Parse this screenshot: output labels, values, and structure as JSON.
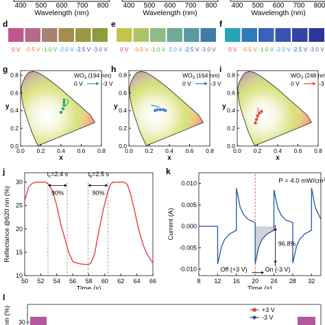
{
  "top_strip": {
    "panels": [
      {
        "ticks": [
          "400",
          "500",
          "600",
          "700",
          "800"
        ],
        "xlabel": "Wavelength (nm)"
      },
      {
        "ticks": [
          "400",
          "500",
          "600",
          "700",
          "800"
        ],
        "xlabel": "Wavelength (nm)"
      },
      {
        "ticks": [
          "400",
          "500",
          "600",
          "700",
          "800"
        ],
        "xlabel": "Wavelength (nm)"
      }
    ]
  },
  "swatch_rows": [
    {
      "letter": "d",
      "labels": [
        "0 V",
        "-0.5 V",
        "-1.0 V",
        "-2.0 V",
        "-2.5 V",
        "-3.0 V"
      ],
      "colors": [
        "#c0568d",
        "#b56a86",
        "#a98172",
        "#a08d4f",
        "#9b9842",
        "#8f9a3b"
      ],
      "label_colors": [
        "#e0404d",
        "#f07c2a",
        "#4aa845",
        "#3a9fd6",
        "#2d4fb0",
        "#7b4ea6"
      ]
    },
    {
      "letter": "e",
      "labels": [
        "0 V",
        "-0.5 V",
        "-1.0 V",
        "-2.0 V",
        "-2.5 V",
        "-3.0 V"
      ],
      "colors": [
        "#c3c34e",
        "#aec26a",
        "#8fba86",
        "#71aa96",
        "#5a99a2",
        "#3f7ca8"
      ],
      "label_colors": [
        "#e0404d",
        "#f07c2a",
        "#4aa845",
        "#3a9fd6",
        "#2d4fb0",
        "#7b4ea6"
      ]
    },
    {
      "letter": "f",
      "labels": [
        "0 V",
        "-0.5 V",
        "-1.0 V",
        "-2.0 V",
        "-2.5 V",
        "-3.0 V"
      ],
      "colors": [
        "#28a3b8",
        "#2f7bba",
        "#3862b9",
        "#3a53b2",
        "#3543a6",
        "#2d349a"
      ],
      "label_colors": [
        "#e0404d",
        "#f07c2a",
        "#4aa845",
        "#3a9fd6",
        "#2d4fb0",
        "#7b4ea6"
      ]
    }
  ],
  "cie_panels": [
    {
      "letter": "g",
      "film": "WO",
      "sub": "3",
      "thickness": " (194 nm)",
      "from": "0 V",
      "to": "-3 V",
      "arrow_color": "#2ea85a",
      "ticks_x": [
        "0.0",
        "0.2",
        "0.4",
        "0.6",
        "0.8"
      ],
      "ticks_y": [
        "0.0",
        "0.2",
        "0.4",
        "0.6",
        "0.8"
      ],
      "xlabel": "x",
      "ylabel": "y"
    },
    {
      "letter": "h",
      "film": "WO",
      "sub": "3",
      "thickness": " (164 nm)",
      "from": "0 V",
      "to": "-3 V",
      "arrow_color": "#2f7fc1",
      "ticks_x": [
        "0.0",
        "0.2",
        "0.4",
        "0.6",
        "0.8"
      ],
      "ticks_y": [
        "0.0",
        "0.2",
        "0.4",
        "0.6",
        "0.8"
      ],
      "xlabel": "x",
      "ylabel": "y"
    },
    {
      "letter": "i",
      "film": "WO",
      "sub": "3",
      "thickness": " (248 nm)",
      "from": "0 V",
      "to": "-3 V",
      "arrow_color": "#e04a3a",
      "ticks_x": [
        "0.0",
        "0.2",
        "0.4",
        "0.6",
        "0.8"
      ],
      "ticks_y": [
        "0.0",
        "0.2",
        "0.4",
        "0.6",
        "0.8"
      ],
      "xlabel": "x",
      "ylabel": "y"
    }
  ],
  "panel_j": {
    "letter": "j",
    "tc_text": "t",
    "tc_sub": "c",
    "tc_val": "=2.4 s",
    "tb_text": "t",
    "tb_sub": "b",
    "tb_val": "=2.5 s",
    "pct1": "90%",
    "pct2": "90%"
  },
  "panel_k": {
    "letter": "k",
    "power": "P = 4.0 mW/cm",
    "power_sup": "2",
    "pct": "96.8%",
    "off_label": "Off (+3 V)",
    "on_label": "On (-3 V)"
  },
  "panel_l": {
    "letter": "l",
    "ylabel_frag": "nm (%)",
    "tick": "30",
    "legend": [
      {
        "label": "+3 V",
        "color": "#e03c3c"
      },
      {
        "label": "-3 V",
        "color": "#2b4fa8"
      }
    ]
  },
  "chart_data": [
    {
      "type": "line",
      "title": "",
      "xlabel": "Time (s)",
      "ylabel": "Reflectance @620 nm (%)",
      "xlim": [
        50,
        66
      ],
      "ylim": [
        10,
        32
      ],
      "x_ticks": [
        "50",
        "52",
        "54",
        "56",
        "58",
        "60",
        "62",
        "64",
        "66"
      ],
      "y_ticks": [
        "10",
        "15",
        "20",
        "25",
        "30"
      ],
      "series": [
        {
          "color": "#e04a4a",
          "x": [
            50,
            50.5,
            51,
            51.5,
            52,
            52.6,
            53,
            53.5,
            54,
            54.5,
            55,
            55.5,
            56,
            56.5,
            57,
            57.5,
            58,
            58.3,
            58.7,
            59.2,
            59.8,
            60.3,
            60.7,
            61,
            61.5,
            62,
            62.4,
            62.8,
            63.2,
            63.7,
            64.2,
            64.8,
            65.3,
            65.8,
            66
          ],
          "y": [
            26,
            29,
            29.8,
            30,
            30,
            30,
            29.5,
            28,
            25,
            21,
            18,
            15,
            13,
            12.7,
            12.5,
            12.4,
            12.4,
            12.8,
            14.5,
            19,
            24,
            27.5,
            29.5,
            30,
            30,
            30,
            30,
            29.5,
            27.5,
            24,
            20,
            16.5,
            14.5,
            13.2,
            12.7
          ]
        }
      ]
    },
    {
      "type": "line",
      "title": "",
      "xlabel": "Time (s)",
      "ylabel": "Current (A)",
      "xlim": [
        8,
        34
      ],
      "ylim": [
        -0.0115,
        0.0125
      ],
      "x_ticks": [
        "8",
        "12",
        "16",
        "20",
        "24",
        "28",
        "32"
      ],
      "y_ticks": [
        "0.010",
        "0.005",
        "0.000",
        "-0.005",
        "-0.010"
      ],
      "series": [
        {
          "color": "#2b5fa8",
          "x": [
            8,
            12,
            12.01,
            12.8,
            13.5,
            14.5,
            16,
            16.01,
            16.8,
            17.5,
            18.5,
            20,
            20.01,
            20.8,
            21.5,
            22.5,
            24,
            24.01,
            24.8,
            25.5,
            26.5,
            28,
            28.01,
            28.8,
            29.5,
            30.5,
            32,
            32.01,
            32.8,
            33.5,
            34
          ],
          "y": [
            0,
            0,
            -0.0088,
            -0.0048,
            -0.003,
            -0.0018,
            -0.0009,
            0.0089,
            0.0045,
            0.0028,
            0.0016,
            0.0009,
            -0.0087,
            -0.0047,
            -0.003,
            -0.0018,
            -0.0009,
            0.0085,
            0.0044,
            0.0027,
            0.0015,
            0.0009,
            -0.0086,
            -0.0047,
            -0.003,
            -0.0018,
            -0.0009,
            0.009,
            0.0044,
            0.0028,
            0.0016
          ]
        }
      ]
    }
  ]
}
